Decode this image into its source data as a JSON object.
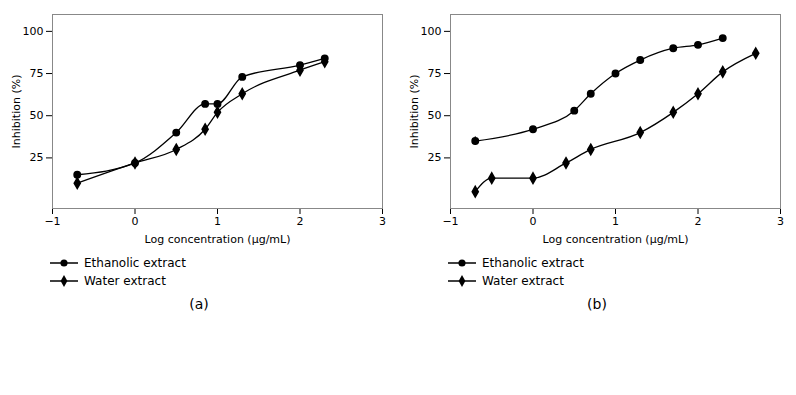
{
  "chart_data": [
    {
      "type": "line",
      "title": "(a)",
      "xlabel": "Log concentration (μg/mL)",
      "ylabel": "Inhibition (%)",
      "xlim": [
        -1,
        3
      ],
      "ylim": [
        -5,
        110
      ],
      "xticks": [
        -1,
        0,
        1,
        2,
        3
      ],
      "yticks": [
        25,
        50,
        75,
        100
      ],
      "legend": "bottom",
      "series": [
        {
          "name": "Ethanolic extract",
          "color": "#000000",
          "marker": "circle",
          "x": [
            -0.7,
            0.0,
            0.5,
            0.85,
            1.0,
            1.3,
            2.0,
            2.3
          ],
          "values": [
            15,
            22,
            40,
            57,
            57,
            73,
            80,
            84
          ],
          "errors": [
            1.5,
            1.5,
            1.5,
            2.0,
            2.0,
            1.5,
            1.5,
            1.5
          ]
        },
        {
          "name": "Water extract",
          "color": "#000000",
          "marker": "diamond",
          "x": [
            -0.7,
            0.0,
            0.5,
            0.85,
            1.0,
            1.3,
            2.0,
            2.3
          ],
          "values": [
            10,
            22,
            30,
            42,
            52,
            63,
            77,
            82
          ],
          "errors": [
            1.5,
            1.5,
            1.5,
            1.5,
            3.0,
            1.5,
            1.5,
            1.5
          ]
        }
      ]
    },
    {
      "type": "line",
      "title": "(b)",
      "xlabel": "Log concentration (μg/mL)",
      "ylabel": "Inhibition (%)",
      "xlim": [
        -1,
        3
      ],
      "ylim": [
        -5,
        110
      ],
      "xticks": [
        -1,
        0,
        1,
        2,
        3
      ],
      "yticks": [
        25,
        50,
        75,
        100
      ],
      "legend": "bottom",
      "series": [
        {
          "name": "Ethanolic extract",
          "color": "#000000",
          "marker": "circle",
          "x": [
            -0.7,
            0.0,
            0.5,
            0.7,
            1.0,
            1.3,
            1.7,
            2.0,
            2.3
          ],
          "values": [
            35,
            42,
            53,
            63,
            75,
            83,
            90,
            92,
            96
          ],
          "errors": [
            2.5,
            1.5,
            1.5,
            1.5,
            1.5,
            1.5,
            1.5,
            1.5,
            1.5
          ]
        },
        {
          "name": "Water extract",
          "color": "#000000",
          "marker": "diamond",
          "x": [
            -0.7,
            -0.5,
            0.0,
            0.4,
            0.7,
            1.3,
            1.7,
            2.0,
            2.3,
            2.7
          ],
          "values": [
            5,
            13,
            13,
            22,
            30,
            40,
            52,
            63,
            76,
            87
          ],
          "errors": [
            1.5,
            1.5,
            1.5,
            1.5,
            1.5,
            1.5,
            1.5,
            1.5,
            3.0,
            1.5
          ]
        }
      ]
    }
  ]
}
